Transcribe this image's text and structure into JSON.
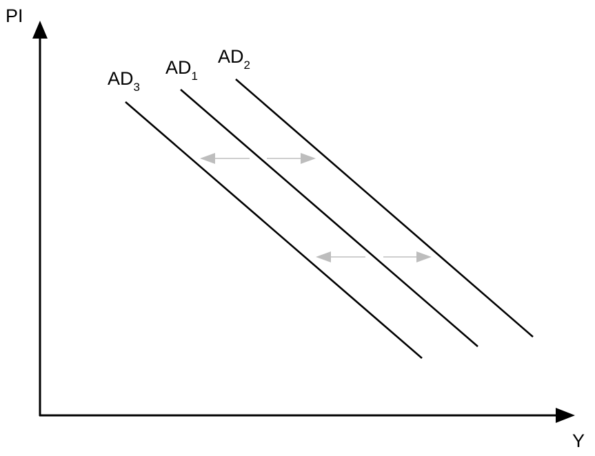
{
  "axes": {
    "y_label": "PI",
    "x_label": "Y"
  },
  "curves": [
    {
      "id": "ad3",
      "label_main": "AD",
      "label_sub": "3"
    },
    {
      "id": "ad1",
      "label_main": "AD",
      "label_sub": "1"
    },
    {
      "id": "ad2",
      "label_main": "AD",
      "label_sub": "2"
    }
  ],
  "shift_arrows": [
    {
      "id": "upper-left",
      "direction": "left"
    },
    {
      "id": "upper-right",
      "direction": "right"
    },
    {
      "id": "lower-left",
      "direction": "left"
    },
    {
      "id": "lower-right",
      "direction": "right"
    }
  ],
  "colors": {
    "line": "#000000",
    "shift_arrow": "#bdbdbd",
    "background": "#ffffff"
  }
}
